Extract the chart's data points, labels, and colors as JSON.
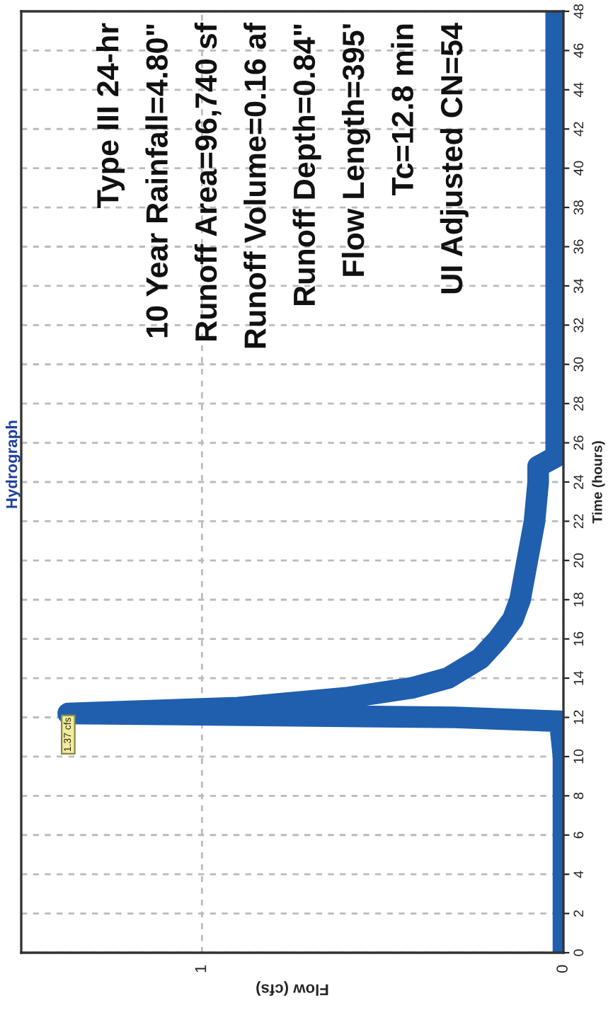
{
  "chart_data": {
    "type": "line",
    "title": "Hydrograph",
    "xlabel": "Flow (cfs)",
    "ylabel": "Time (hours)",
    "series": [
      {
        "color": "#1f5fae",
        "x": [
          0,
          0,
          0,
          0,
          0,
          0,
          0.01,
          0.3,
          1.37,
          0.9,
          0.6,
          0.42,
          0.32,
          0.23,
          0.18,
          0.14,
          0.12,
          0.1,
          0.08,
          0.07,
          0.07,
          0.02,
          0.02,
          0.02,
          0.02,
          0.02,
          0.02
        ],
        "values": [
          0,
          2,
          4,
          6,
          8,
          10,
          11.8,
          12.0,
          12.2,
          12.5,
          13.0,
          13.5,
          14,
          15,
          16,
          17,
          18,
          20,
          22,
          24,
          24.8,
          25.3,
          26,
          30,
          36,
          42,
          48
        ]
      }
    ],
    "ylim": [
      0,
      48
    ],
    "yticks": [
      0,
      2,
      4,
      6,
      8,
      10,
      12,
      14,
      16,
      18,
      20,
      22,
      24,
      26,
      28,
      30,
      32,
      34,
      36,
      38,
      40,
      42,
      44,
      46,
      48
    ],
    "xlim": [
      1.5,
      0
    ],
    "xticks": [
      1,
      0
    ],
    "grid": true,
    "line_style": "solid",
    "annotations": [
      {
        "text": "1.37 cfs",
        "x": 1.37,
        "y": 12.2
      },
      "Type III 24-hr",
      "10 Year Rainfall=4.80\"",
      "Runoff Area=96,740 sf",
      "Runoff Volume=0.16 af",
      "Runoff Depth=0.84\"",
      "Flow Length=395'",
      "Tc=12.8 min",
      "UI Adjusted CN=54"
    ]
  }
}
